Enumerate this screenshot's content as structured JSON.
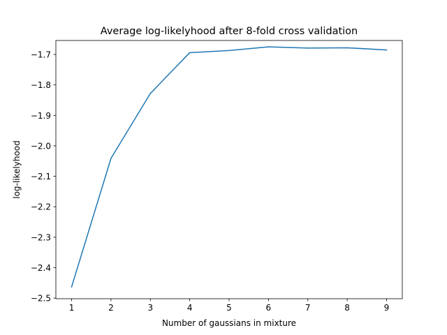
{
  "chart_data": {
    "type": "line",
    "title": "Average log-likelyhood after 8-fold cross validation",
    "xlabel": "Number of gaussians in mixture",
    "ylabel": "log-likelyhood",
    "x": [
      1,
      2,
      3,
      4,
      5,
      6,
      7,
      8,
      9
    ],
    "series": [
      {
        "values": [
          -2.463,
          -2.041,
          -1.828,
          -1.694,
          -1.687,
          -1.675,
          -1.679,
          -1.678,
          -1.685
        ],
        "color": "#1f77b4"
      }
    ],
    "xticks": [
      "1",
      "2",
      "3",
      "4",
      "5",
      "6",
      "7",
      "8",
      "9"
    ],
    "yticks": [
      "−1.7",
      "−1.8",
      "−1.9",
      "−2.0",
      "−2.1",
      "−2.2",
      "−2.3",
      "−2.4",
      "−2.5"
    ],
    "ytick_values": [
      -1.7,
      -1.8,
      -1.9,
      -2.0,
      -2.1,
      -2.2,
      -2.3,
      -2.4,
      -2.5
    ],
    "xlim": [
      0.6,
      9.4
    ],
    "ylim": [
      -2.502,
      -1.654
    ],
    "grid": false,
    "legend": "none"
  }
}
